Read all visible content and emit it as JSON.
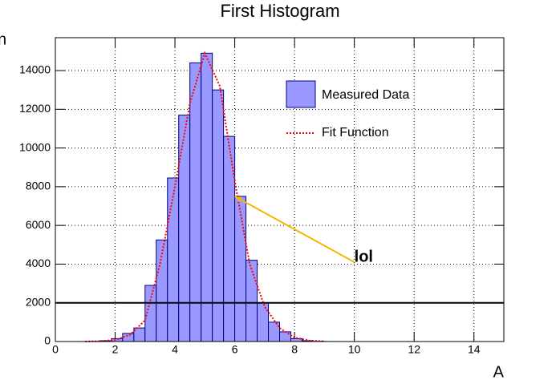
{
  "chart_data": {
    "type": "histogram",
    "title": "First Histogram",
    "x_label": "A",
    "y_label": "n",
    "bins": [
      0,
      0.375,
      0.75,
      1.125,
      1.5,
      1.875,
      2.25,
      2.625,
      3,
      3.375,
      3.75,
      4.125,
      4.5,
      4.875,
      5.25,
      5.625,
      6,
      6.375,
      6.75,
      7.125,
      7.5,
      7.875,
      8.25,
      8.625,
      9,
      9.375,
      9.75,
      10.125,
      10.5,
      10.875,
      11.25,
      11.625,
      12,
      12.375,
      12.75,
      13.125,
      13.5,
      13.875,
      14.25,
      14.625,
      15
    ],
    "series": [
      {
        "name": "Measured Data",
        "color": "#9999ff",
        "values": [
          0,
          0,
          1,
          8,
          40,
          150,
          420,
          700,
          2900,
          5250,
          8450,
          11700,
          14400,
          14900,
          13000,
          10600,
          7500,
          4200,
          2000,
          1000,
          500,
          150,
          40,
          10,
          2,
          0,
          0,
          0,
          0,
          0,
          0,
          0,
          0,
          0,
          0,
          0,
          0,
          0,
          0,
          0
        ]
      },
      {
        "name": "Fit Function",
        "color": "#ff0000",
        "x": [
          1,
          1.5,
          2,
          2.5,
          3,
          3.5,
          4,
          4.5,
          5,
          5.5,
          6,
          6.5,
          7,
          7.5,
          8,
          8.5,
          9
        ],
        "values": [
          0,
          20,
          80,
          350,
          1100,
          4000,
          8000,
          12300,
          14900,
          13200,
          8300,
          4000,
          1800,
          700,
          200,
          50,
          10
        ]
      }
    ],
    "hline": 2000,
    "annotation": {
      "text": "lol",
      "x": 10,
      "y": 4100,
      "arrow_x": 6,
      "arrow_y": 7500,
      "color": "#f5b800"
    },
    "xlim": [
      0,
      15
    ],
    "ylim": [
      0,
      15700
    ],
    "xticks": [
      0,
      2,
      4,
      6,
      8,
      10,
      12,
      14
    ],
    "yticks": [
      0,
      2000,
      4000,
      6000,
      8000,
      10000,
      12000,
      14000
    ],
    "grid": true
  }
}
